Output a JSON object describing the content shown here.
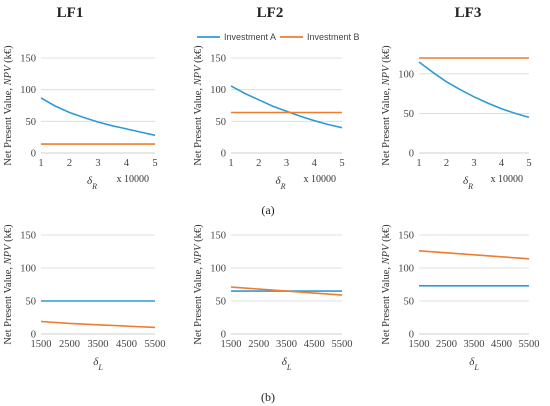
{
  "figure": {
    "column_titles": [
      "LF1",
      "LF2",
      "LF3"
    ],
    "panel_labels": [
      "(a)",
      "(b)"
    ],
    "legend": [
      {
        "name": "Investment A",
        "color": "#2E9BD6"
      },
      {
        "name": "Investment B",
        "color": "#ED7D31"
      }
    ],
    "ylabel": "Net Present Value, NPV (k€)",
    "row_a_xlabel": "δR",
    "row_a_multiplier": "x 10000",
    "row_b_xlabel": "δL"
  },
  "chart_data": [
    {
      "id": "a1",
      "type": "line",
      "column": "LF1",
      "row": "a",
      "x": [
        1,
        1.5,
        2,
        2.5,
        3,
        3.5,
        4,
        4.5,
        5
      ],
      "xlim": [
        1,
        5
      ],
      "xticks": [
        1,
        2,
        3,
        4,
        5
      ],
      "ylim": [
        0,
        150
      ],
      "yticks": [
        0,
        50,
        100,
        150
      ],
      "series": [
        {
          "name": "Investment A",
          "values": [
            87,
            74,
            64,
            56,
            49,
            43,
            38,
            33,
            28
          ]
        },
        {
          "name": "Investment B",
          "values": [
            14,
            14,
            14,
            14,
            14,
            14,
            14,
            14,
            14
          ]
        }
      ]
    },
    {
      "id": "a2",
      "type": "line",
      "column": "LF2",
      "row": "a",
      "x": [
        1,
        1.5,
        2,
        2.5,
        3,
        3.5,
        4,
        4.5,
        5
      ],
      "xlim": [
        1,
        5
      ],
      "xticks": [
        1,
        2,
        3,
        4,
        5
      ],
      "ylim": [
        0,
        150
      ],
      "yticks": [
        0,
        50,
        100,
        150
      ],
      "series": [
        {
          "name": "Investment A",
          "values": [
            106,
            94,
            84,
            74,
            66,
            58,
            51,
            45,
            40
          ]
        },
        {
          "name": "Investment B",
          "values": [
            64,
            64,
            64,
            64,
            64,
            64,
            64,
            64,
            64
          ]
        }
      ]
    },
    {
      "id": "a3",
      "type": "line",
      "column": "LF3",
      "row": "a",
      "x": [
        1,
        1.5,
        2,
        2.5,
        3,
        3.5,
        4,
        4.5,
        5
      ],
      "xlim": [
        1,
        5
      ],
      "xticks": [
        1,
        2,
        3,
        4,
        5
      ],
      "ylim": [
        0,
        120
      ],
      "yticks": [
        0,
        50,
        100
      ],
      "series": [
        {
          "name": "Investment A",
          "values": [
            115,
            102,
            90,
            80,
            71,
            63,
            56,
            50,
            45
          ]
        },
        {
          "name": "Investment B",
          "values": [
            120,
            120,
            120,
            120,
            120,
            120,
            120,
            120,
            120
          ]
        }
      ]
    },
    {
      "id": "b1",
      "type": "line",
      "column": "LF1",
      "row": "b",
      "x": [
        1500,
        2500,
        3500,
        4500,
        5500
      ],
      "xlim": [
        1500,
        5500
      ],
      "xticks": [
        1500,
        2500,
        3500,
        4500,
        5500
      ],
      "ylim": [
        0,
        150
      ],
      "yticks": [
        0,
        50,
        100,
        150
      ],
      "series": [
        {
          "name": "Investment A",
          "values": [
            50,
            50,
            50,
            50,
            50
          ]
        },
        {
          "name": "Investment B",
          "values": [
            19,
            16,
            14,
            12,
            10
          ]
        }
      ]
    },
    {
      "id": "b2",
      "type": "line",
      "column": "LF2",
      "row": "b",
      "x": [
        1500,
        2500,
        3500,
        4500,
        5500
      ],
      "xlim": [
        1500,
        5500
      ],
      "xticks": [
        1500,
        2500,
        3500,
        4500,
        5500
      ],
      "ylim": [
        0,
        150
      ],
      "yticks": [
        0,
        50,
        100,
        150
      ],
      "series": [
        {
          "name": "Investment A",
          "values": [
            65,
            65,
            65,
            65,
            65
          ]
        },
        {
          "name": "Investment B",
          "values": [
            71,
            68,
            65,
            62,
            59
          ]
        }
      ]
    },
    {
      "id": "b3",
      "type": "line",
      "column": "LF3",
      "row": "b",
      "x": [
        1500,
        2500,
        3500,
        4500,
        5500
      ],
      "xlim": [
        1500,
        5500
      ],
      "xticks": [
        1500,
        2500,
        3500,
        4500,
        5500
      ],
      "ylim": [
        0,
        150
      ],
      "yticks": [
        0,
        50,
        100,
        150
      ],
      "series": [
        {
          "name": "Investment A",
          "values": [
            73,
            73,
            73,
            73,
            73
          ]
        },
        {
          "name": "Investment B",
          "values": [
            126,
            123,
            120,
            117,
            114
          ]
        }
      ]
    }
  ]
}
